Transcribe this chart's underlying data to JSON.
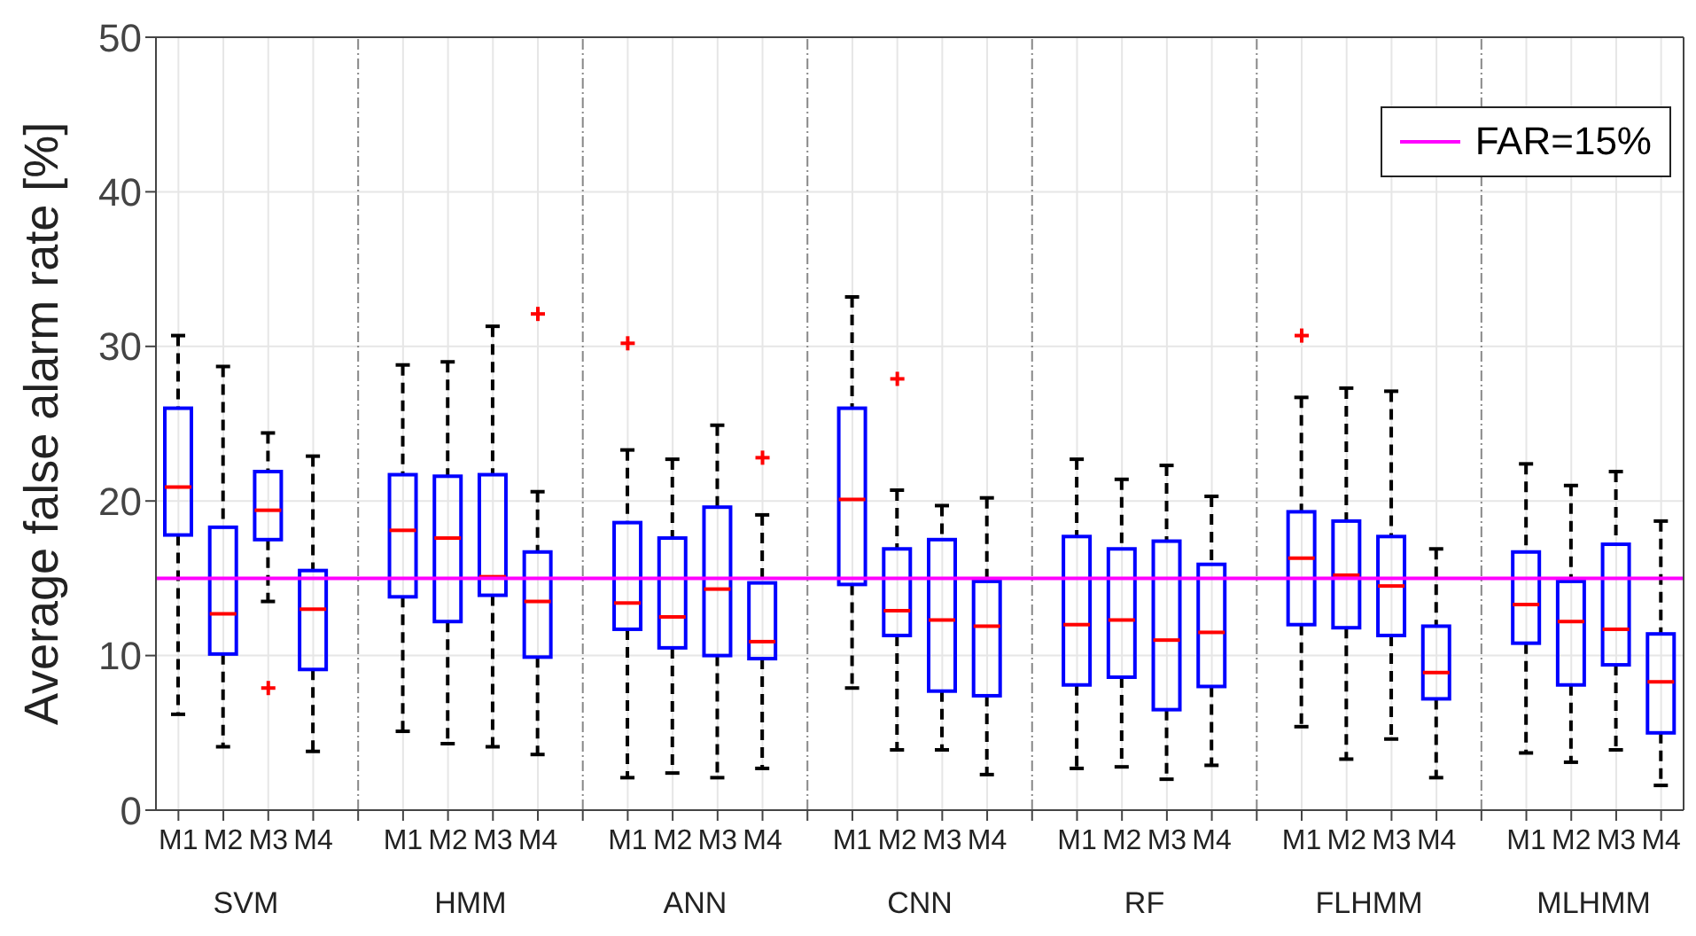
{
  "chart_data": {
    "type": "box",
    "ylabel": "Average false alarm rate [%]",
    "categories": [
      "M1",
      "M2",
      "M3",
      "M4",
      "M1",
      "M2",
      "M3",
      "M4",
      "M1",
      "M2",
      "M3",
      "M4",
      "M1",
      "M2",
      "M3",
      "M4",
      "M1",
      "M2",
      "M3",
      "M4",
      "M1",
      "M2",
      "M3",
      "M4",
      "M1",
      "M2",
      "M3",
      "M4"
    ],
    "annotations": [
      "SVM",
      "HMM",
      "ANN",
      "CNN",
      "RF",
      "FLHMM",
      "MLHMM"
    ],
    "series": [
      {
        "color": "#0000ff",
        "boxes": [
          {
            "low": 6.2,
            "q1": 17.8,
            "median": 20.9,
            "q3": 26.0,
            "high": 30.7
          },
          {
            "low": 4.1,
            "q1": 10.1,
            "median": 12.7,
            "q3": 18.3,
            "high": 28.7
          },
          {
            "low": 13.5,
            "q1": 17.5,
            "median": 19.4,
            "q3": 21.9,
            "high": 24.4,
            "outliers": [
              7.9
            ]
          },
          {
            "low": 3.8,
            "q1": 9.1,
            "median": 13.0,
            "q3": 15.5,
            "high": 22.9
          },
          {
            "low": 5.1,
            "q1": 13.8,
            "median": 18.1,
            "q3": 21.7,
            "high": 28.8
          },
          {
            "low": 4.3,
            "q1": 12.2,
            "median": 17.6,
            "q3": 21.6,
            "high": 29.0
          },
          {
            "low": 4.1,
            "q1": 13.9,
            "median": 15.1,
            "q3": 21.7,
            "high": 31.3
          },
          {
            "low": 3.6,
            "q1": 9.9,
            "median": 13.5,
            "q3": 16.7,
            "high": 20.6,
            "outliers": [
              32.1
            ]
          },
          {
            "low": 2.1,
            "q1": 11.7,
            "median": 13.4,
            "q3": 18.6,
            "high": 23.3,
            "outliers": [
              30.2
            ]
          },
          {
            "low": 2.4,
            "q1": 10.5,
            "median": 12.5,
            "q3": 17.6,
            "high": 22.7
          },
          {
            "low": 2.1,
            "q1": 10.0,
            "median": 14.3,
            "q3": 19.6,
            "high": 24.9
          },
          {
            "low": 2.7,
            "q1": 9.8,
            "median": 10.9,
            "q3": 14.7,
            "high": 19.1,
            "outliers": [
              22.8
            ]
          },
          {
            "low": 7.9,
            "q1": 14.6,
            "median": 20.1,
            "q3": 26.0,
            "high": 33.2
          },
          {
            "low": 3.9,
            "q1": 11.3,
            "median": 12.9,
            "q3": 16.9,
            "high": 20.7,
            "outliers": [
              27.9
            ]
          },
          {
            "low": 3.9,
            "q1": 7.7,
            "median": 12.3,
            "q3": 17.5,
            "high": 19.7
          },
          {
            "low": 2.3,
            "q1": 7.4,
            "median": 11.9,
            "q3": 14.8,
            "high": 20.2
          },
          {
            "low": 2.7,
            "q1": 8.1,
            "median": 12.0,
            "q3": 17.7,
            "high": 22.7
          },
          {
            "low": 2.8,
            "q1": 8.6,
            "median": 12.3,
            "q3": 16.9,
            "high": 21.4
          },
          {
            "low": 2.0,
            "q1": 6.5,
            "median": 11.0,
            "q3": 17.4,
            "high": 22.3
          },
          {
            "low": 2.9,
            "q1": 8.0,
            "median": 11.5,
            "q3": 15.9,
            "high": 20.3
          },
          {
            "low": 5.4,
            "q1": 12.0,
            "median": 16.3,
            "q3": 19.3,
            "high": 26.7,
            "outliers": [
              30.7
            ]
          },
          {
            "low": 3.3,
            "q1": 11.8,
            "median": 15.2,
            "q3": 18.7,
            "high": 27.3
          },
          {
            "low": 4.6,
            "q1": 11.3,
            "median": 14.5,
            "q3": 17.7,
            "high": 27.1
          },
          {
            "low": 2.1,
            "q1": 7.2,
            "median": 8.9,
            "q3": 11.9,
            "high": 16.9
          },
          {
            "low": 3.7,
            "q1": 10.8,
            "median": 13.3,
            "q3": 16.7,
            "high": 22.4
          },
          {
            "low": 3.1,
            "q1": 8.1,
            "median": 12.2,
            "q3": 14.8,
            "high": 21.0
          },
          {
            "low": 3.9,
            "q1": 9.4,
            "median": 11.7,
            "q3": 17.2,
            "high": 21.9
          },
          {
            "low": 1.6,
            "q1": 5.0,
            "median": 8.3,
            "q3": 11.4,
            "high": 18.7
          }
        ]
      }
    ],
    "ylim": [
      0,
      50
    ],
    "yticks": [
      0,
      10,
      20,
      30,
      40,
      50
    ],
    "grid": true,
    "legend": "top right",
    "ref_lines": [
      {
        "axis": "y",
        "value": 15,
        "label": "FAR=15%",
        "color": "#ff00ff"
      }
    ]
  }
}
